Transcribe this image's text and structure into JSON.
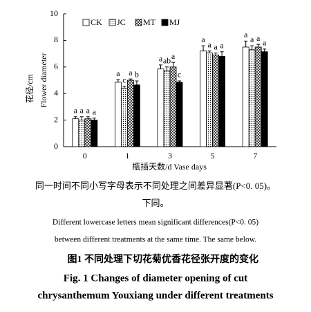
{
  "chart_data": {
    "type": "bar",
    "y_label_cn": "花径/cm",
    "y_label_en": "Flower diameter",
    "x_label": "瓶插天数/d  Vase days",
    "categories": [
      "0",
      "1",
      "3",
      "5",
      "7"
    ],
    "ylim": [
      0,
      10
    ],
    "yticks": [
      0,
      2,
      4,
      6,
      8,
      10
    ],
    "series": [
      {
        "name": "CK",
        "color": "#ffffff",
        "pattern": "none",
        "values": [
          2.1,
          4.85,
          5.85,
          7.2,
          7.5
        ],
        "errors": [
          0.15,
          0.2,
          0.3,
          0.4,
          0.45
        ],
        "letters": [
          "a",
          "a",
          "a",
          "a",
          "a"
        ]
      },
      {
        "name": "JC",
        "color": "#ffffff",
        "pattern": "dots",
        "values": [
          2.0,
          4.4,
          5.7,
          7.05,
          7.3
        ],
        "errors": [
          0.25,
          0.15,
          0.3,
          0.15,
          0.3
        ],
        "letters": [
          "a",
          "c",
          "ab",
          "a",
          "a"
        ]
      },
      {
        "name": "MT",
        "color": "#ffffff",
        "pattern": "crosshatch",
        "values": [
          2.1,
          5.0,
          6.0,
          6.9,
          7.5
        ],
        "errors": [
          0.15,
          0.1,
          0.35,
          0.15,
          0.2
        ],
        "letters": [
          "a",
          "a",
          "a",
          "a",
          "a"
        ]
      },
      {
        "name": "MJ",
        "color": "#000000",
        "pattern": "none",
        "values": [
          2.0,
          4.65,
          4.85,
          6.8,
          7.15
        ],
        "errors": [
          0.15,
          0.3,
          0.1,
          0.35,
          0.2
        ],
        "letters": [
          "a",
          "b",
          "c",
          "a",
          "a"
        ]
      }
    ]
  },
  "notes": [
    "同一时间不同小写字母表示不同处理之间差异显著(P<0. 05)。",
    "下同。",
    "Different lowercase letters mean significant differences(P<0. 05)",
    "between different treatments at the same time. The same below."
  ],
  "figure": {
    "label_cn": "图1",
    "title_cn": "不同处理下切花菊优香花径张开度的变化",
    "title_en_1": "Fig. 1    Changes of diameter opening of cut",
    "title_en_2": "chrysanthemum Youxiang under different treatments"
  }
}
